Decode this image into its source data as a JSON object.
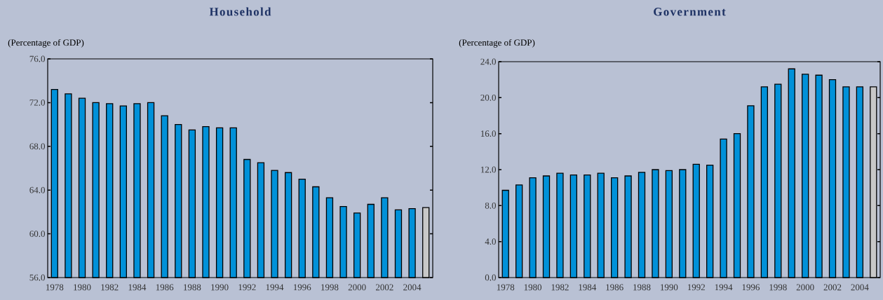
{
  "chart_data": [
    {
      "type": "bar",
      "title": "Household",
      "ylabel": "(Percentage of GDP)",
      "categories": [
        "1978",
        null,
        "1980",
        null,
        "1982",
        null,
        "1984",
        null,
        "1986",
        null,
        "1988",
        null,
        "1990",
        null,
        "1992",
        null,
        "1994",
        null,
        "1996",
        null,
        "1998",
        null,
        "2000",
        null,
        "2002",
        null,
        "2004",
        null
      ],
      "values": [
        73.2,
        72.8,
        72.4,
        72.0,
        71.9,
        71.7,
        71.9,
        72.0,
        70.8,
        70.0,
        69.5,
        69.8,
        69.7,
        69.7,
        66.8,
        66.5,
        65.8,
        65.6,
        65.0,
        64.3,
        63.3,
        62.5,
        61.9,
        62.7,
        63.3,
        62.2,
        62.3,
        62.4
      ],
      "colors": [
        "#0091d9",
        "#0091d9",
        "#0091d9",
        "#0091d9",
        "#0091d9",
        "#0091d9",
        "#0091d9",
        "#0091d9",
        "#0091d9",
        "#0091d9",
        "#0091d9",
        "#0091d9",
        "#0091d9",
        "#0091d9",
        "#0091d9",
        "#0091d9",
        "#0091d9",
        "#0091d9",
        "#0091d9",
        "#0091d9",
        "#0091d9",
        "#0091d9",
        "#0091d9",
        "#0091d9",
        "#0091d9",
        "#0091d9",
        "#0091d9",
        "#c8c8c8"
      ],
      "ylim": [
        56,
        76
      ],
      "yticks": [
        {
          "value": 56,
          "label": "56.0"
        },
        {
          "value": 60,
          "label": "60.0"
        },
        {
          "value": 64,
          "label": "64.0"
        },
        {
          "value": 68,
          "label": "68.0"
        },
        {
          "value": 72,
          "label": "72.0"
        },
        {
          "value": 76,
          "label": "76.0"
        }
      ]
    },
    {
      "type": "bar",
      "title": "Government",
      "ylabel": "(Percentage of GDP)",
      "categories": [
        "1978",
        null,
        "1980",
        null,
        "1982",
        null,
        "1984",
        null,
        "1986",
        null,
        "1988",
        null,
        "1990",
        null,
        "1992",
        null,
        "1994",
        null,
        "1996",
        null,
        "1998",
        null,
        "2000",
        null,
        "2002",
        null,
        "2004",
        null
      ],
      "values": [
        9.7,
        10.3,
        11.1,
        11.3,
        11.6,
        11.4,
        11.4,
        11.6,
        11.1,
        11.3,
        11.7,
        12.0,
        11.9,
        12.0,
        12.6,
        12.5,
        15.4,
        16.0,
        19.1,
        21.2,
        21.5,
        23.2,
        22.6,
        22.5,
        22.0,
        21.2,
        21.2,
        21.2
      ],
      "colors": [
        "#0091d9",
        "#0091d9",
        "#0091d9",
        "#0091d9",
        "#0091d9",
        "#0091d9",
        "#0091d9",
        "#0091d9",
        "#0091d9",
        "#0091d9",
        "#0091d9",
        "#0091d9",
        "#0091d9",
        "#0091d9",
        "#0091d9",
        "#0091d9",
        "#0091d9",
        "#0091d9",
        "#0091d9",
        "#0091d9",
        "#0091d9",
        "#0091d9",
        "#0091d9",
        "#0091d9",
        "#0091d9",
        "#0091d9",
        "#0091d9",
        "#c8c8c8"
      ],
      "ylim": [
        0,
        24
      ],
      "yticks": [
        {
          "value": 0,
          "label": "0.0"
        },
        {
          "value": 4,
          "label": "4.0"
        },
        {
          "value": 8,
          "label": "8.0"
        },
        {
          "value": 12,
          "label": "12.0"
        },
        {
          "value": 16,
          "label": "16.0"
        },
        {
          "value": 20,
          "label": "20.0"
        },
        {
          "value": 24,
          "label": "24.0"
        }
      ]
    }
  ]
}
